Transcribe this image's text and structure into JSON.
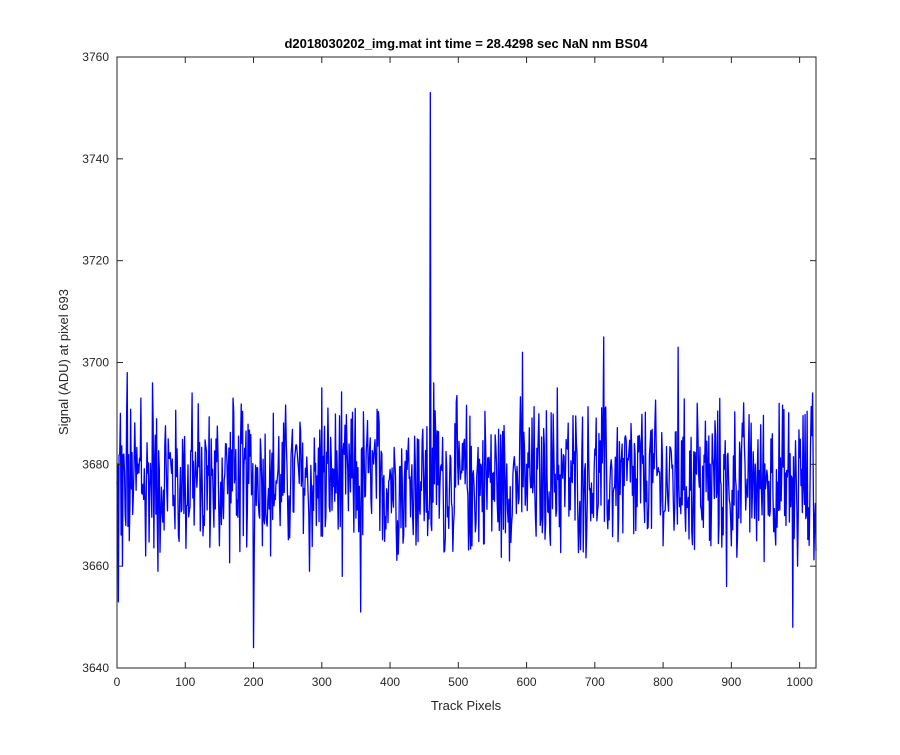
{
  "chart_data": {
    "type": "line",
    "title": "d2018030202_img.mat int time = 28.4298 sec  NaN nm BS04",
    "xlabel": "Track Pixels",
    "ylabel": "Signal (ADU) at pixel 693",
    "xlim": [
      0,
      1024
    ],
    "ylim": [
      3640,
      3760
    ],
    "xticks": [
      0,
      100,
      200,
      300,
      400,
      500,
      600,
      700,
      800,
      900,
      1000
    ],
    "yticks": [
      3640,
      3660,
      3680,
      3700,
      3720,
      3740,
      3760
    ],
    "x_tick_labels": [
      "0",
      "100",
      "200",
      "300",
      "400",
      "500",
      "600",
      "700",
      "800",
      "900",
      "1000"
    ],
    "y_tick_labels": [
      "3640",
      "3660",
      "3680",
      "3700",
      "3720",
      "3740",
      "3760"
    ],
    "grid": false,
    "legend": "none",
    "series": [
      {
        "color": "#0000ff",
        "baseline_mean": 3677,
        "noise_range": [
          3660,
          3696
        ],
        "x": [
          0,
          2,
          5,
          8,
          12,
          15,
          18,
          25,
          35,
          42,
          52,
          60,
          75,
          90,
          100,
          110,
          128,
          140,
          150,
          160,
          170,
          175,
          185,
          197,
          200,
          210,
          225,
          240,
          260,
          282,
          292,
          300,
          318,
          330,
          338,
          348,
          357,
          370,
          385,
          400,
          420,
          440,
          455,
          459,
          461,
          464,
          470,
          480,
          500,
          520,
          540,
          560,
          580,
          594,
          600,
          620,
          645,
          660,
          680,
          700,
          713,
          720,
          740,
          760,
          780,
          800,
          822,
          830,
          850,
          870,
          893,
          897,
          900,
          920,
          940,
          960,
          980,
          990,
          993,
          997,
          1003,
          1010,
          1016,
          1019,
          1022,
          1024
        ],
        "y": [
          3676,
          3653,
          3690,
          3660,
          3670,
          3698,
          3665,
          3680,
          3693,
          3662,
          3696,
          3659,
          3685,
          3666,
          3676,
          3694,
          3668,
          3679,
          3664,
          3684,
          3693,
          3670,
          3666,
          3674,
          3644,
          3685,
          3662,
          3678,
          3681,
          3659,
          3668,
          3695,
          3679,
          3658,
          3679,
          3681,
          3651,
          3683,
          3667,
          3679,
          3666,
          3685,
          3666,
          3753,
          3667,
          3696,
          3676,
          3663,
          3676,
          3664,
          3684,
          3667,
          3678,
          3702,
          3680,
          3668,
          3695,
          3683,
          3671,
          3683,
          3705,
          3673,
          3684,
          3667,
          3682,
          3664,
          3703,
          3675,
          3692,
          3664,
          3656,
          3673,
          3664,
          3680,
          3669,
          3686,
          3668,
          3648,
          3677,
          3660,
          3679,
          3670,
          3684,
          3694,
          3669,
          3663
        ]
      }
    ]
  }
}
